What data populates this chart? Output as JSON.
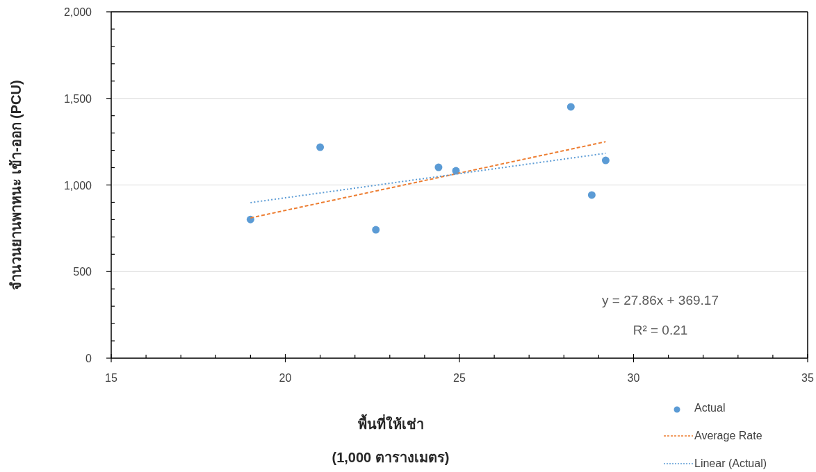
{
  "chart_data": {
    "type": "scatter",
    "xlabel": "พื้นที่ให้เช่า\n(1,000 ตารางเมตร)",
    "ylabel": "จำนวนยานพาหนะ เข้า-ออก (PCU)",
    "xlim": [
      15,
      35
    ],
    "ylim": [
      0,
      2000
    ],
    "xticks": [
      15,
      {
        "value": 16,
        "label": null
      },
      {
        "value": 17,
        "label": null
      },
      {
        "value": 18,
        "label": null
      },
      {
        "value": 19,
        "label": null
      },
      20,
      {
        "value": 21,
        "label": null
      },
      {
        "value": 22,
        "label": null
      },
      {
        "value": 23,
        "label": null
      },
      {
        "value": 24,
        "label": null
      },
      25,
      {
        "value": 26,
        "label": null
      },
      {
        "value": 27,
        "label": null
      },
      {
        "value": 28,
        "label": null
      },
      {
        "value": 29,
        "label": null
      },
      30,
      {
        "value": 31,
        "label": null
      },
      {
        "value": 32,
        "label": null
      },
      {
        "value": 33,
        "label": null
      },
      {
        "value": 34,
        "label": null
      },
      35
    ],
    "yticks": [
      {
        "value": 0,
        "label": "0"
      },
      {
        "value": 100,
        "label": null
      },
      {
        "value": 200,
        "label": null
      },
      {
        "value": 300,
        "label": null
      },
      {
        "value": 400,
        "label": null
      },
      {
        "value": 500,
        "label": "500"
      },
      {
        "value": 600,
        "label": null
      },
      {
        "value": 700,
        "label": null
      },
      {
        "value": 800,
        "label": null
      },
      {
        "value": 900,
        "label": null
      },
      {
        "value": 1000,
        "label": "1,000"
      },
      {
        "value": 1100,
        "label": null
      },
      {
        "value": 1200,
        "label": null
      },
      {
        "value": 1300,
        "label": null
      },
      {
        "value": 1400,
        "label": null
      },
      {
        "value": 1500,
        "label": "1,500"
      },
      {
        "value": 1600,
        "label": null
      },
      {
        "value": 1700,
        "label": null
      },
      {
        "value": 1800,
        "label": null
      },
      {
        "value": 1900,
        "label": null
      },
      {
        "value": 2000,
        "label": "2,000"
      }
    ],
    "grid": "y",
    "legend": "bottom right",
    "series": [
      {
        "name": "Actual",
        "marker": "circle",
        "color": "#5b9bd5",
        "x": [
          19,
          21,
          22.6,
          24.4,
          24.9,
          28.2,
          28.8,
          29.2
        ],
        "values": [
          801,
          1218,
          741,
          1102,
          1082,
          1451,
          942,
          1142
        ]
      },
      {
        "name": "Average Rate",
        "type": "line",
        "line_style": "dashed",
        "color": "#ed7d31",
        "x": [
          19,
          29.2
        ],
        "values": [
          810,
          1250
        ]
      },
      {
        "name": "Linear (Actual)",
        "type": "line",
        "line_style": "dotted",
        "color": "#5b9bd5",
        "x": [
          19,
          29.2
        ],
        "values": [
          898,
          1183
        ]
      }
    ],
    "annotations": [
      "y = 27.86x + 369.17",
      "R² = 0.21"
    ]
  }
}
